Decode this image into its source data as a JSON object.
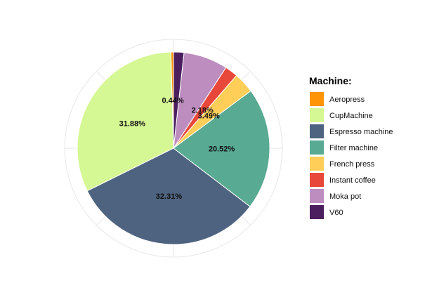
{
  "chart_data": {
    "type": "pie",
    "legend": {
      "title": "Machine:",
      "placement": "right"
    },
    "grid": true,
    "categories": [
      "Aeropress",
      "CupMachine",
      "Espresso machine",
      "Filter machine",
      "French press",
      "Instant coffee",
      "Moka pot",
      "V60"
    ],
    "values": [
      0.44,
      31.88,
      32.31,
      20.52,
      3.49,
      2.18,
      7.42,
      1.75
    ],
    "colors": [
      "#FF9408",
      "#D5F794",
      "#4E637F",
      "#59AA92",
      "#FFCE58",
      "#E8483A",
      "#BD8DC0",
      "#4B1F5E"
    ],
    "labels": [
      {
        "category": "Aeropress",
        "text": "0.44%"
      },
      {
        "category": "CupMachine",
        "text": "31.88%"
      },
      {
        "category": "Espresso machine",
        "text": "32.31%"
      },
      {
        "category": "Filter machine",
        "text": "20.52%"
      },
      {
        "category": "French press",
        "text": "3.49%"
      },
      {
        "category": "Instant coffee",
        "text": "2.18%"
      }
    ],
    "order": "counter-clockwise from top",
    "start_angle_deg": 0
  }
}
